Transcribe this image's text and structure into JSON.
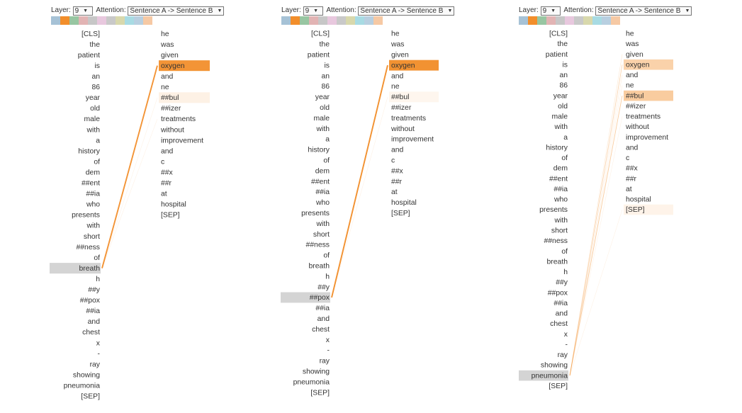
{
  "labels": {
    "layer": "Layer:",
    "attention": "Attention:"
  },
  "swatch_colors": [
    "#a6c2d6",
    "#f28e2b",
    "#98c6a2",
    "#e2b4b4",
    "#c7c7c7",
    "#e8c8de",
    "#c9c9c9",
    "#d8d8ac",
    "#a8dbe3",
    "#b8cfe0",
    "#f6c9a4"
  ],
  "left_tokens": [
    "[CLS]",
    "the",
    "patient",
    "is",
    "an",
    "86",
    "year",
    "old",
    "male",
    "with",
    "a",
    "history",
    "of",
    "dem",
    "##ent",
    "##ia",
    "who",
    "presents",
    "with",
    "short",
    "##ness",
    "of",
    "breath",
    "h",
    "##y",
    "##pox",
    "##ia",
    "and",
    "chest",
    "x",
    "-",
    "ray",
    "showing",
    "pneumonia",
    "[SEP]"
  ],
  "right_tokens": [
    "he",
    "was",
    "given",
    "oxygen",
    "and",
    "ne",
    "##bul",
    "##izer",
    "treatments",
    "without",
    "improvement",
    "and",
    "c",
    "##x",
    "##r",
    "at",
    "hospital",
    "[SEP]"
  ],
  "panels": [
    {
      "layer": "9",
      "attention": "Sentence A -> Sentence B",
      "selected_left": "breath",
      "right_highlights": [
        {
          "token": "oxygen",
          "weight": 0.95
        },
        {
          "token": "##bul",
          "weight": 0.12
        }
      ],
      "lines": [
        {
          "target": "oxygen",
          "weight": 0.95
        },
        {
          "target": "##bul",
          "weight": 0.12
        },
        {
          "target": "treatments",
          "weight": 0.05
        }
      ]
    },
    {
      "layer": "9",
      "attention": "Sentence A -> Sentence B",
      "selected_left": "##pox",
      "right_highlights": [
        {
          "token": "oxygen",
          "weight": 0.97
        },
        {
          "token": "##bul",
          "weight": 0.08
        }
      ],
      "lines": [
        {
          "target": "oxygen",
          "weight": 0.97
        },
        {
          "target": "##bul",
          "weight": 0.08
        }
      ]
    },
    {
      "layer": "9",
      "attention": "Sentence A -> Sentence B",
      "selected_left": "pneumonia",
      "right_highlights": [
        {
          "token": "oxygen",
          "weight": 0.4
        },
        {
          "token": "##bul",
          "weight": 0.45
        },
        {
          "token": "[SEP]",
          "weight": 0.1
        }
      ],
      "lines": [
        {
          "target": "oxygen",
          "weight": 0.4
        },
        {
          "target": "##bul",
          "weight": 0.45
        },
        {
          "target": "given",
          "weight": 0.22
        },
        {
          "target": "and",
          "weight": 0.18
        },
        {
          "target": "ne",
          "weight": 0.15
        },
        {
          "target": "[SEP]",
          "weight": 0.1
        },
        {
          "target": "treatments",
          "weight": 0.06
        }
      ]
    }
  ]
}
